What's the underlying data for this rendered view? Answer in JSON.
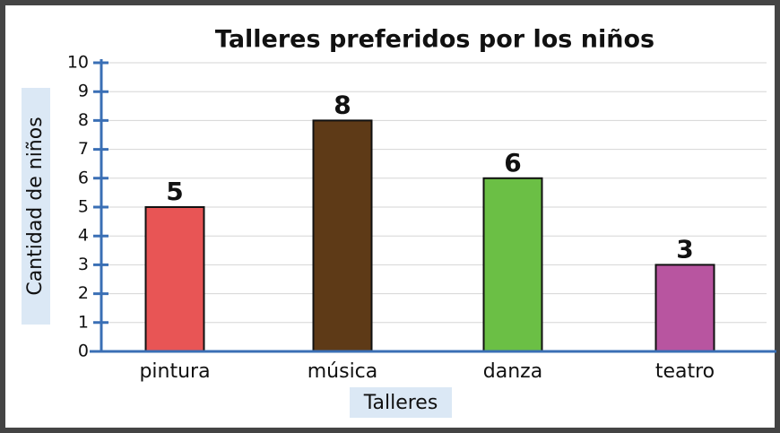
{
  "chart_data": {
    "type": "bar",
    "title": "Talleres preferidos por los niños",
    "xlabel": "Talleres",
    "ylabel": "Cantidad de niños",
    "categories": [
      "pintura",
      "música",
      "danza",
      "teatro"
    ],
    "values": [
      5,
      8,
      6,
      3
    ],
    "colors": [
      "#e85555",
      "#5e3a17",
      "#6bbf45",
      "#b855a0"
    ],
    "ylim": [
      0,
      10
    ],
    "yticks": [
      0,
      1,
      2,
      3,
      4,
      5,
      6,
      7,
      8,
      9,
      10
    ],
    "grid": true
  }
}
